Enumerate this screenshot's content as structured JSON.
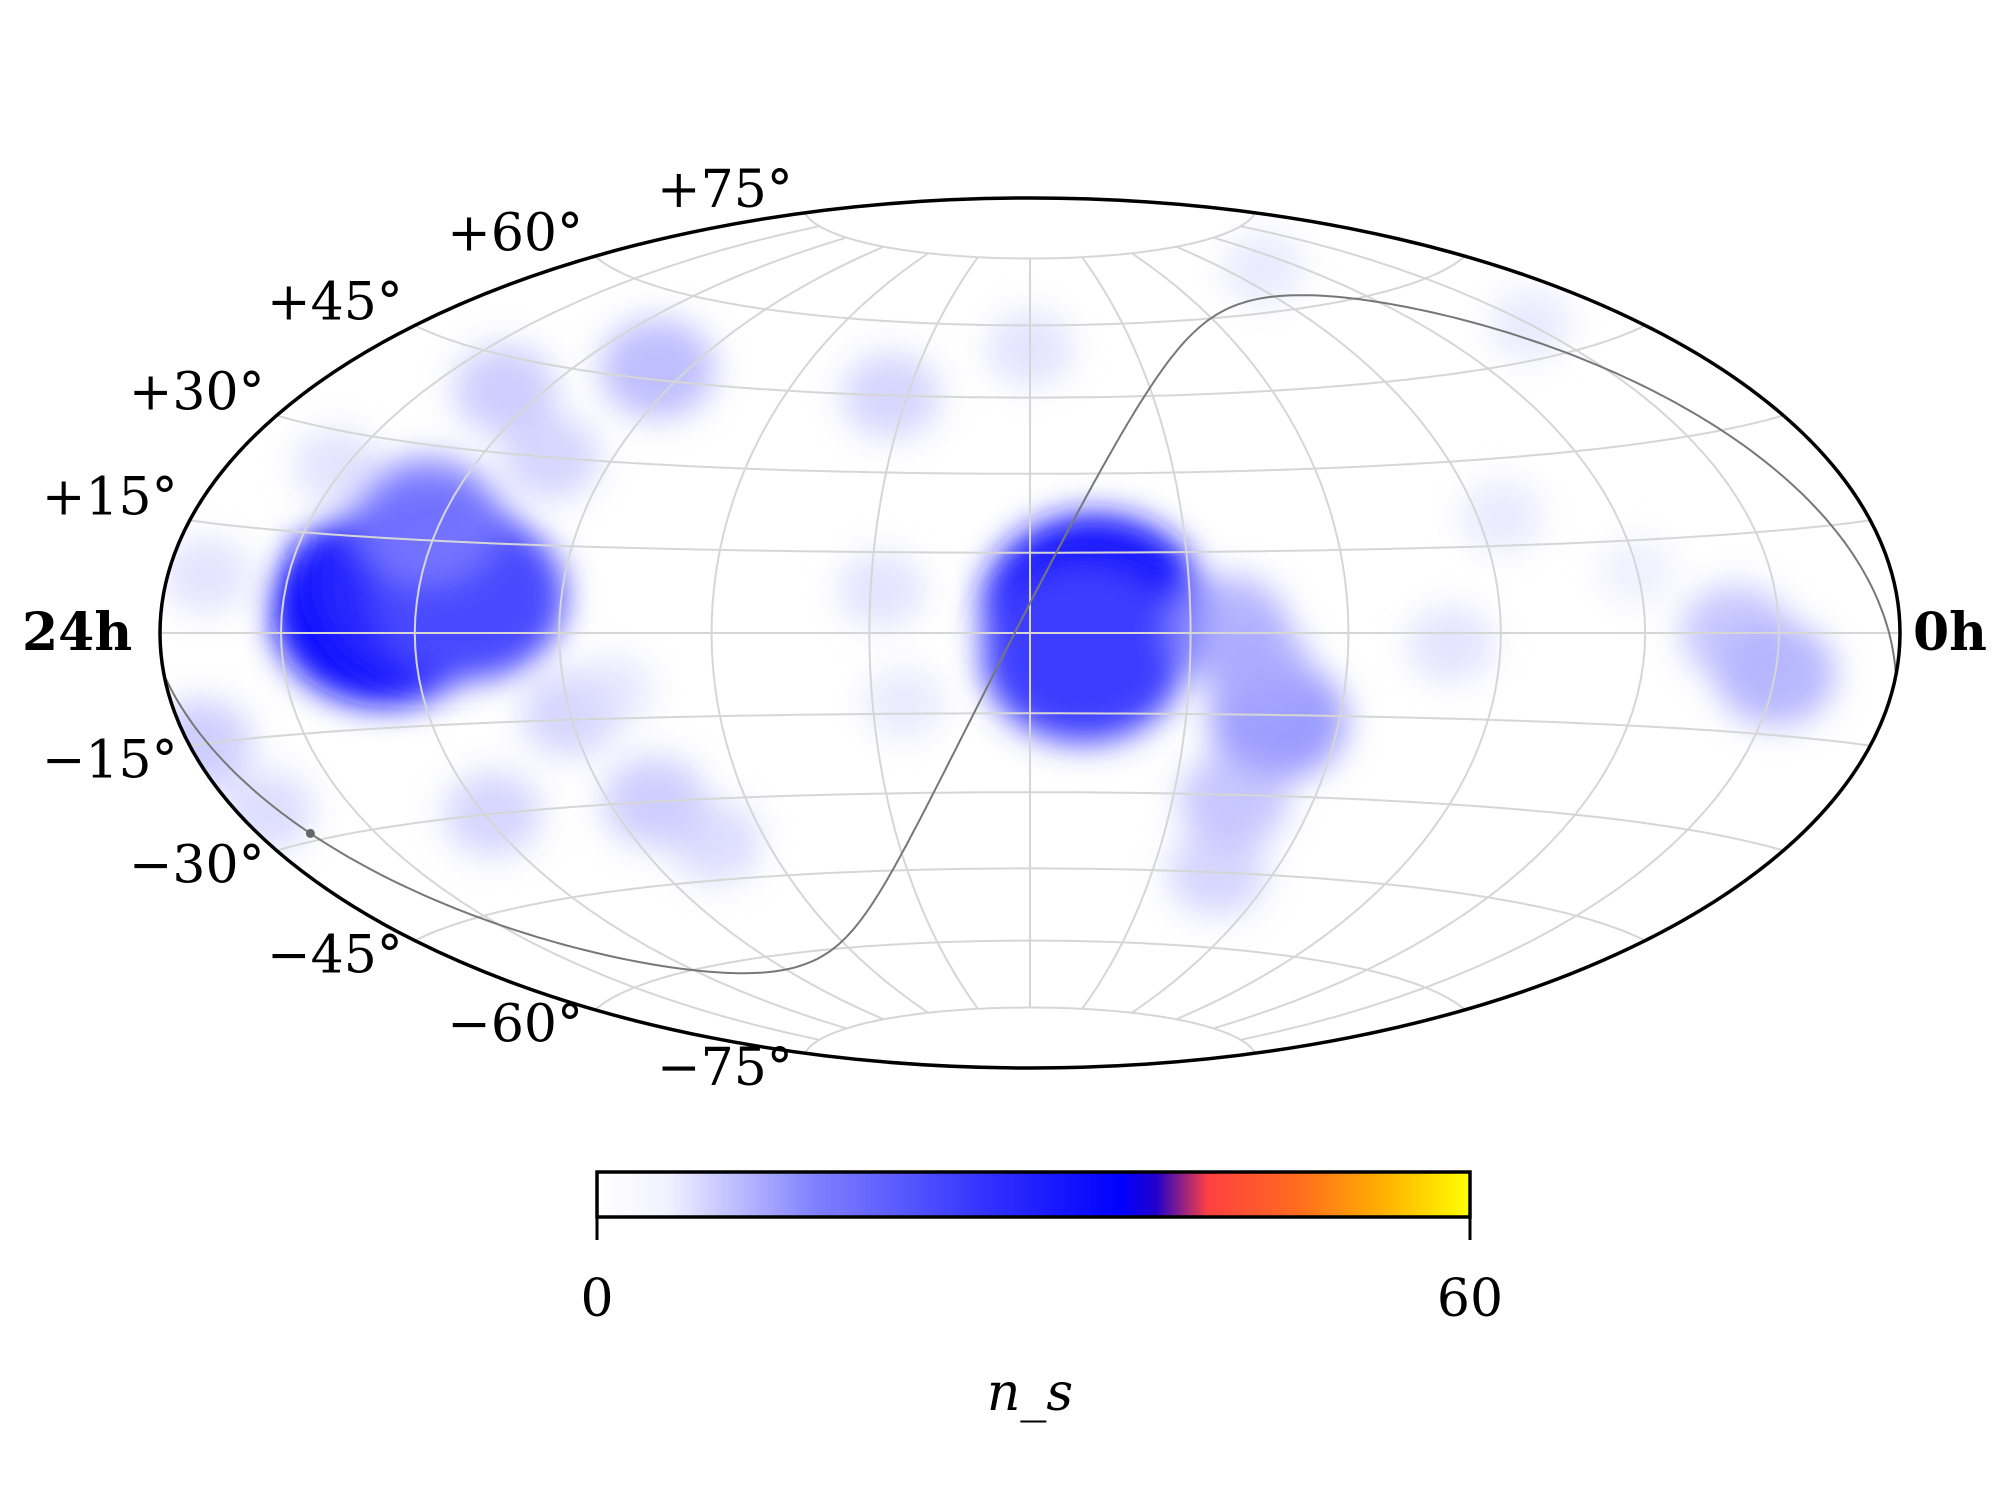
{
  "chart_data": {
    "type": "heatmap",
    "projection": "hammer-aitoff",
    "colorbar": {
      "label": "n_s",
      "min": 0,
      "max": 60,
      "tick_labels": [
        "0",
        "60"
      ],
      "colors": [
        "#ffffff",
        "#8080ff",
        "#0000ff",
        "#ff4040",
        "#ffff00"
      ]
    },
    "ra_labels": {
      "left": "24h",
      "right": "0h"
    },
    "dec_labels": [
      "+75°",
      "+60°",
      "+45°",
      "+30°",
      "+15°",
      "−15°",
      "−30°",
      "−45°",
      "−60°",
      "−75°"
    ],
    "dec_ticks": [
      75,
      60,
      45,
      30,
      15,
      -15,
      -30,
      -45,
      -60,
      -75
    ],
    "grid": true,
    "galactic_plane": true,
    "hotspots": [
      {
        "lon": 127,
        "lat": 4,
        "ns": 34
      },
      {
        "lon": 118,
        "lat": 8,
        "ns": 30
      },
      {
        "lon": 109,
        "lat": 6,
        "ns": 24
      },
      {
        "lon": 123,
        "lat": 18,
        "ns": 16
      },
      {
        "lon": -12,
        "lat": 4,
        "ns": 32
      },
      {
        "lon": -10,
        "lat": -4,
        "ns": 26
      },
      {
        "lon": -48,
        "lat": -16,
        "ns": 14
      },
      {
        "lon": -37,
        "lat": 1,
        "ns": 11
      },
      {
        "lon": -42,
        "lat": -6,
        "ns": 10
      },
      {
        "lon": -43,
        "lat": -31,
        "ns": 9
      },
      {
        "lon": -46,
        "lat": -45,
        "ns": 7
      },
      {
        "lon": 98,
        "lat": 47,
        "ns": 10
      },
      {
        "lon": 130,
        "lat": 40,
        "ns": 8
      },
      {
        "lon": 104,
        "lat": 30,
        "ns": 7
      },
      {
        "lon": 34,
        "lat": 45,
        "ns": 7
      },
      {
        "lon": 0,
        "lat": 55,
        "ns": 5
      },
      {
        "lon": 90,
        "lat": -14,
        "ns": 7
      },
      {
        "lon": 80,
        "lat": -30,
        "ns": 8
      },
      {
        "lon": 118,
        "lat": -30,
        "ns": 7
      },
      {
        "lon": 72,
        "lat": -38,
        "ns": 6
      },
      {
        "lon": -150,
        "lat": -6,
        "ns": 11
      },
      {
        "lon": -140,
        "lat": 0,
        "ns": 9
      },
      {
        "lon": 177,
        "lat": -15,
        "ns": 8
      },
      {
        "lon": 172,
        "lat": -25,
        "ns": 6
      },
      {
        "lon": 170,
        "lat": 8,
        "ns": 5
      },
      {
        "lon": 152,
        "lat": 25,
        "ns": 5
      },
      {
        "lon": 28,
        "lat": 8,
        "ns": 5
      },
      {
        "lon": 24,
        "lat": -13,
        "ns": 4
      },
      {
        "lon": 80,
        "lat": -10,
        "ns": 4
      },
      {
        "lon": -95,
        "lat": 20,
        "ns": 4
      },
      {
        "lon": -80,
        "lat": -2,
        "ns": 5
      },
      {
        "lon": -120,
        "lat": 10,
        "ns": 3
      },
      {
        "lon": -150,
        "lat": 50,
        "ns": 4
      },
      {
        "lon": -105,
        "lat": 68,
        "ns": 4
      }
    ]
  }
}
